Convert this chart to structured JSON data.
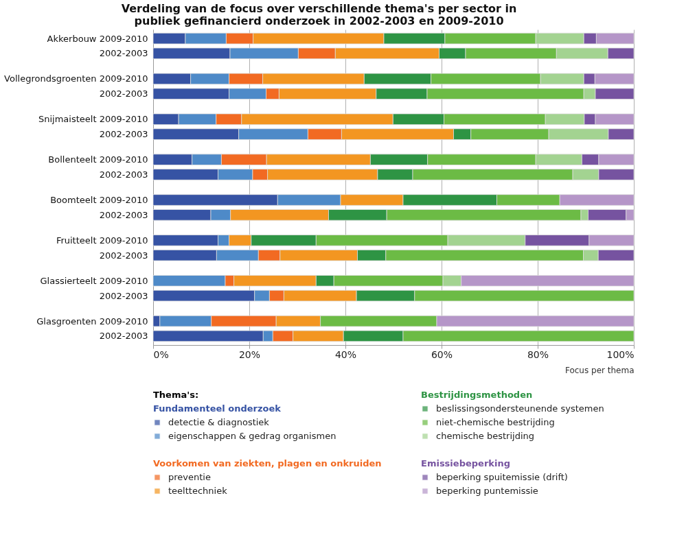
{
  "chart_data": {
    "type": "bar",
    "orientation": "horizontal",
    "stacked": true,
    "title": "Verdeling van de focus over verschillende thema's per sector in\npubliek gefinancierd onderzoek in 2002-2003 en 2009-2010",
    "xlabel": "Focus per thema",
    "legend_title": "Thema's:",
    "annotations": [
      "Fundamenteel onderzoek",
      "Voorkomen van ziekten, plagen en onkruiden",
      "Bestrijdingsmethoden",
      "Emissiebeperking"
    ],
    "categories": [
      "Akkerbouw 2009-2010",
      "2002-2003",
      "Vollegrondsgroenten 2009-2010",
      "2002-2003",
      "Snijmaisteelt 2009-2010",
      "2002-2003",
      "Bollenteelt 2009-2010",
      "2002-2003",
      "Boomteelt 2009-2010",
      "2002-2003",
      "Fruitteelt 2009-2010",
      "2002-2003",
      "Glassierteelt 2009-2010",
      "2002-2003",
      "Glasgroenten 2009-2010",
      "2002-2003"
    ],
    "series": [
      {
        "name": "detectie & diagnostiek",
        "color": "#3653a4",
        "values": [
          6.7,
          16.0,
          7.8,
          15.8,
          5.3,
          17.8,
          8.1,
          13.5,
          25.9,
          12.0,
          13.5,
          13.2,
          null,
          21.1,
          1.4,
          22.9
        ]
      },
      {
        "name": "eigenschappen & gedrag organismen",
        "color": "#4e8ac8",
        "values": [
          8.5,
          14.2,
          8.0,
          7.7,
          7.8,
          14.4,
          6.1,
          7.2,
          13.1,
          4.1,
          2.3,
          8.7,
          15.0,
          3.1,
          10.7,
          2.0
        ]
      },
      {
        "name": "preventie",
        "color": "#f26a22",
        "values": [
          5.6,
          7.7,
          7.0,
          2.7,
          5.3,
          7.0,
          9.4,
          3.1,
          null,
          null,
          null,
          4.5,
          1.8,
          3.0,
          13.5,
          4.2
        ]
      },
      {
        "name": "teelttechniek",
        "color": "#f39621",
        "values": [
          27.2,
          21.6,
          21.1,
          20.2,
          31.5,
          23.3,
          21.6,
          22.9,
          13.0,
          20.4,
          4.6,
          16.1,
          17.1,
          15.1,
          9.2,
          10.5
        ]
      },
      {
        "name": "beslissingsondersteunende systemen",
        "color": "#2e9444",
        "values": [
          12.7,
          5.5,
          13.9,
          10.6,
          10.6,
          3.6,
          11.9,
          7.3,
          19.5,
          12.1,
          13.5,
          5.9,
          3.7,
          12.1,
          null,
          12.4
        ]
      },
      {
        "name": "niet-chemische bestrijding",
        "color": "#6cbb45",
        "values": [
          18.9,
          18.9,
          22.8,
          32.6,
          21.1,
          16.2,
          22.5,
          33.3,
          13.1,
          40.4,
          27.4,
          41.1,
          22.7,
          45.6,
          24.2,
          48.0
        ]
      },
      {
        "name": "chemische bestrijding",
        "color": "#a3d391",
        "values": [
          10.0,
          10.7,
          9.0,
          2.4,
          8.1,
          12.4,
          9.6,
          5.4,
          null,
          1.5,
          16.1,
          3.1,
          3.8,
          null,
          null,
          null
        ]
      },
      {
        "name": "beperking spuitemissie (drift)",
        "color": "#7653a0",
        "values": [
          2.6,
          5.4,
          2.3,
          8.0,
          2.3,
          5.3,
          3.5,
          7.3,
          null,
          7.9,
          13.3,
          7.4,
          null,
          null,
          null,
          null
        ]
      },
      {
        "name": "beperking puntemissie",
        "color": "#b596c8",
        "values": [
          7.8,
          null,
          8.1,
          null,
          8.0,
          null,
          7.3,
          null,
          15.4,
          1.6,
          9.3,
          null,
          35.9,
          null,
          41.0,
          null
        ]
      }
    ],
    "xlim": [
      0,
      100
    ],
    "xticks": [
      {
        "value": 0,
        "label": "0%"
      },
      {
        "value": 20,
        "label": "20%"
      },
      {
        "value": 40,
        "label": "40%"
      },
      {
        "value": 60,
        "label": "60%"
      },
      {
        "value": 80,
        "label": "80%"
      },
      {
        "value": 100,
        "label": "100%"
      }
    ],
    "grid": "x",
    "legend": "bottom"
  }
}
